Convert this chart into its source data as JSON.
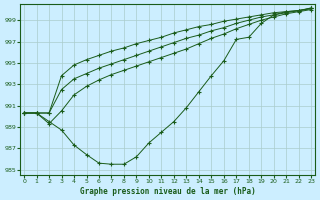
{
  "xlabel": "Graphe pression niveau de la mer (hPa)",
  "bg_color": "#cceeff",
  "grid_color": "#aacccc",
  "line_color": "#1a5c1a",
  "marker_color": "#1a5c1a",
  "ylim": [
    984.5,
    1000.5
  ],
  "xlim": [
    -0.3,
    23.3
  ],
  "yticks": [
    985,
    987,
    989,
    991,
    993,
    995,
    997,
    999
  ],
  "xticks": [
    0,
    1,
    2,
    3,
    4,
    5,
    6,
    7,
    8,
    9,
    10,
    11,
    12,
    13,
    14,
    15,
    16,
    17,
    18,
    19,
    20,
    21,
    22,
    23
  ],
  "series": [
    [
      990.3,
      990.3,
      989.5,
      988.7,
      987.3,
      986.4,
      985.6,
      985.5,
      985.5,
      986.2,
      987.5,
      988.5,
      989.5,
      990.8,
      992.3,
      993.8,
      995.2,
      997.2,
      997.4,
      998.7,
      999.5,
      999.8,
      999.9,
      1000.1
    ],
    [
      990.3,
      990.3,
      989.3,
      990.5,
      992.0,
      992.8,
      993.4,
      993.9,
      994.3,
      994.7,
      995.1,
      995.5,
      995.9,
      996.3,
      996.8,
      997.3,
      997.7,
      998.2,
      998.6,
      999.0,
      999.3,
      999.6,
      999.8,
      1000.0
    ],
    [
      990.3,
      990.3,
      990.3,
      992.5,
      993.5,
      994.0,
      994.5,
      994.9,
      995.3,
      995.7,
      996.1,
      996.5,
      996.9,
      997.3,
      997.6,
      998.0,
      998.3,
      998.7,
      999.0,
      999.3,
      999.5,
      999.7,
      999.9,
      1000.1
    ],
    [
      990.3,
      990.3,
      990.3,
      993.8,
      994.8,
      995.3,
      995.7,
      996.1,
      996.4,
      996.8,
      997.1,
      997.4,
      997.8,
      998.1,
      998.4,
      998.6,
      998.9,
      999.1,
      999.3,
      999.5,
      999.7,
      999.8,
      999.9,
      1000.15
    ]
  ]
}
